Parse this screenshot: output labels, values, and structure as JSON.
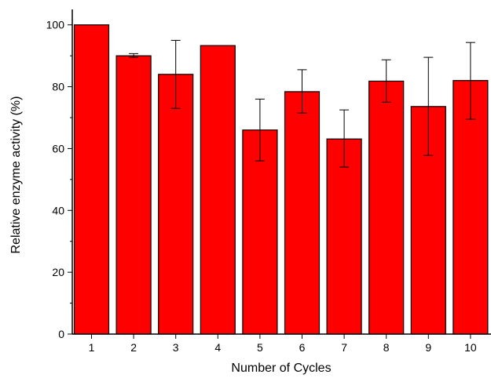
{
  "chart_data": {
    "type": "bar",
    "title": "",
    "xlabel": "Number of Cycles",
    "ylabel": "Relative enzyme activity (%)",
    "categories": [
      "1",
      "2",
      "3",
      "4",
      "5",
      "6",
      "7",
      "8",
      "9",
      "10"
    ],
    "values": [
      100,
      90,
      84,
      93.3,
      66,
      78.4,
      63.1,
      81.8,
      73.6,
      82
    ],
    "error_low": [
      100,
      89.5,
      73,
      93.3,
      56,
      71.5,
      54,
      75,
      57.8,
      69.5
    ],
    "error_high": [
      100,
      90.7,
      95,
      93.3,
      76,
      85.5,
      72.5,
      88.7,
      89.5,
      94.3
    ],
    "ylim": [
      0,
      105
    ],
    "yticks": [
      0,
      20,
      40,
      60,
      80,
      100
    ],
    "bar_color": "#ff0000",
    "bar_edge_color": "#000000",
    "grid": false,
    "legend": "none"
  }
}
